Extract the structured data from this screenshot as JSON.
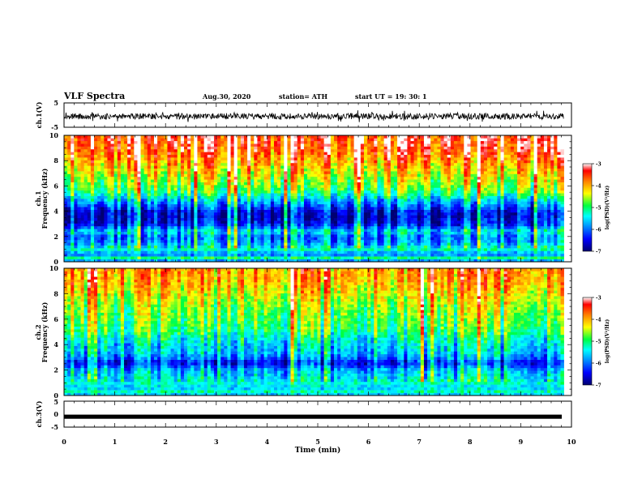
{
  "header": {
    "title": "VLF Spectra",
    "date": "Aug.30, 2020",
    "station": "station= ATH",
    "start": "start UT =   19: 30: 1"
  },
  "chart_data": [
    {
      "id": "ch1_waveform",
      "type": "line",
      "ylabel": "ch.1(V)",
      "ylim": [
        -5,
        5
      ],
      "y_ticks": [
        "5",
        "-5"
      ],
      "xlim": [
        0,
        10
      ],
      "trace_color": "#000000",
      "description_values": {
        "baseline": -0.5,
        "amplitude": 2.5
      }
    },
    {
      "id": "ch1_spectrogram",
      "type": "heatmap",
      "ylabel": [
        "ch.1",
        "Frequency (kHz)"
      ],
      "ylim": [
        0,
        10
      ],
      "y_ticks": [
        "0",
        "2",
        "4",
        "6",
        "8",
        "10"
      ],
      "xlim": [
        0,
        10
      ],
      "data_end_min": 9.85,
      "colorbar": {
        "label": "log(PSD)(V²/Hz)",
        "range": [
          -7,
          -3
        ],
        "ticks": [
          "-3",
          "-4",
          "-5",
          "-6",
          "-7"
        ]
      },
      "level_profile": [
        [
          0.0,
          -6.2
        ],
        [
          0.3,
          -5.0
        ],
        [
          0.6,
          -6.0
        ],
        [
          1.0,
          -5.2
        ],
        [
          1.5,
          -5.8
        ],
        [
          2.0,
          -6.0
        ],
        [
          2.4,
          -5.4
        ],
        [
          2.6,
          -5.8
        ],
        [
          3.0,
          -6.4
        ],
        [
          3.3,
          -6.5
        ],
        [
          3.6,
          -6.6
        ],
        [
          4.0,
          -6.5
        ],
        [
          4.5,
          -6.0
        ],
        [
          5.0,
          -5.5
        ],
        [
          5.5,
          -5.0
        ],
        [
          6.0,
          -4.7
        ],
        [
          7.0,
          -4.3
        ],
        [
          8.0,
          -3.9
        ],
        [
          9.0,
          -3.5
        ],
        [
          10.0,
          -3.4
        ]
      ]
    },
    {
      "id": "ch2_spectrogram",
      "type": "heatmap",
      "ylabel": [
        "ch.2",
        "Frequency (kHz)"
      ],
      "ylim": [
        0,
        10
      ],
      "y_ticks": [
        "0",
        "2",
        "4",
        "6",
        "8",
        "10"
      ],
      "xlim": [
        0,
        10
      ],
      "data_end_min": 9.85,
      "colorbar": {
        "label": "log(PSD)(V²/Hz)",
        "range": [
          -7,
          -3
        ],
        "ticks": [
          "-3",
          "-4",
          "-5",
          "-6",
          "-7"
        ]
      },
      "level_profile": [
        [
          0.0,
          -5.8
        ],
        [
          0.3,
          -5.2
        ],
        [
          0.6,
          -5.6
        ],
        [
          1.0,
          -5.3
        ],
        [
          1.5,
          -5.5
        ],
        [
          2.0,
          -5.7
        ],
        [
          2.4,
          -6.2
        ],
        [
          2.6,
          -6.4
        ],
        [
          3.0,
          -5.9
        ],
        [
          3.5,
          -5.6
        ],
        [
          4.0,
          -5.5
        ],
        [
          4.5,
          -5.3
        ],
        [
          5.0,
          -5.0
        ],
        [
          6.0,
          -4.8
        ],
        [
          7.0,
          -4.6
        ],
        [
          8.0,
          -4.3
        ],
        [
          9.0,
          -4.0
        ],
        [
          10.0,
          -3.9
        ]
      ]
    },
    {
      "id": "ch3_waveform",
      "type": "line",
      "ylabel": "ch.3(V)",
      "ylim": [
        -5,
        5
      ],
      "y_ticks": [
        "5",
        "0",
        "-5"
      ],
      "xlim": [
        0,
        10
      ],
      "trace_color": "#000000",
      "description_values": {
        "baseline": -1.0,
        "amplitude": 0.25
      }
    }
  ],
  "x_axis": {
    "label": "Time (min)",
    "ticks": [
      "0",
      "1",
      "2",
      "3",
      "4",
      "5",
      "6",
      "7",
      "8",
      "9",
      "10"
    ],
    "range": [
      0,
      10
    ]
  },
  "colormap": [
    "#000070",
    "#0000ff",
    "#00a0ff",
    "#00ffff",
    "#00ff40",
    "#ffff00",
    "#ff8000",
    "#ff0000",
    "#ffffff"
  ]
}
